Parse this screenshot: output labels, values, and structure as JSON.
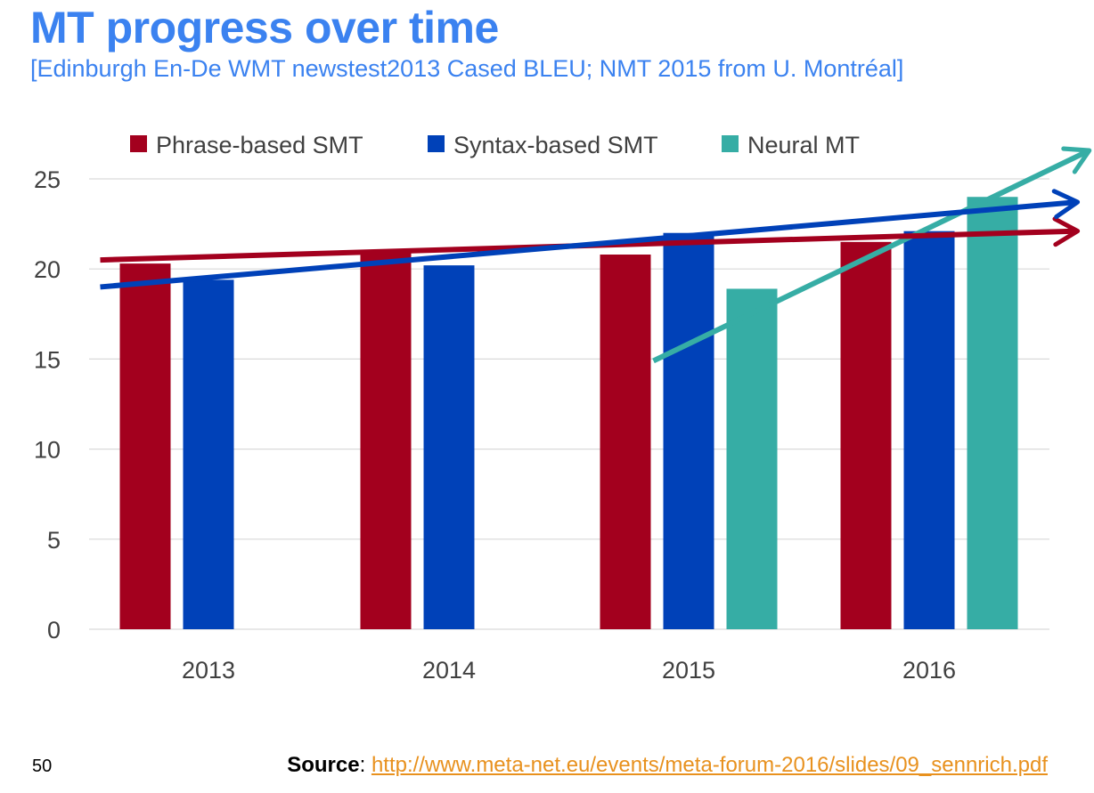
{
  "title": "MT progress over time",
  "subtitle": "[Edinburgh En-De WMT newstest2013 Cased BLEU; NMT 2015 from U. Montréal]",
  "page_number": "50",
  "source": {
    "label": "Source",
    "separator": ": ",
    "url": "http://www.meta-net.eu/events/meta-forum-2016/slides/09_sennrich.pdf"
  },
  "colors": {
    "title": "#3b82f0",
    "phrase": "#a3001e",
    "syntax": "#0041b8",
    "neural": "#36ada5",
    "grid": "#d9d9d9",
    "axis_text": "#404040",
    "link": "#e8911e"
  },
  "chart_data": {
    "type": "bar",
    "categories": [
      "2013",
      "2014",
      "2015",
      "2016"
    ],
    "series": [
      {
        "name": "Phrase-based SMT",
        "color": "#a3001e",
        "values": [
          20.3,
          20.9,
          20.8,
          21.5
        ]
      },
      {
        "name": "Syntax-based SMT",
        "color": "#0041b8",
        "values": [
          19.4,
          20.2,
          22.0,
          22.1
        ]
      },
      {
        "name": "Neural MT",
        "color": "#36ada5",
        "values": [
          null,
          null,
          18.9,
          24.0
        ]
      }
    ],
    "ylim": [
      0,
      25
    ],
    "yticks": [
      0,
      5,
      10,
      15,
      20,
      25
    ],
    "grid": true,
    "legend_position": "top",
    "trend_arrows": [
      {
        "series": "Phrase-based SMT",
        "color": "#a3001e",
        "from": {
          "x": 2012.55,
          "y": 20.5
        },
        "to": {
          "x": 2016.6,
          "y": 22.1
        }
      },
      {
        "series": "Syntax-based SMT",
        "color": "#0041b8",
        "from": {
          "x": 2012.55,
          "y": 19.0
        },
        "to": {
          "x": 2016.6,
          "y": 23.7
        }
      },
      {
        "series": "Neural MT",
        "color": "#36ada5",
        "from": {
          "x": 2014.85,
          "y": 14.9
        },
        "to": {
          "x": 2016.65,
          "y": 26.5
        }
      }
    ]
  }
}
